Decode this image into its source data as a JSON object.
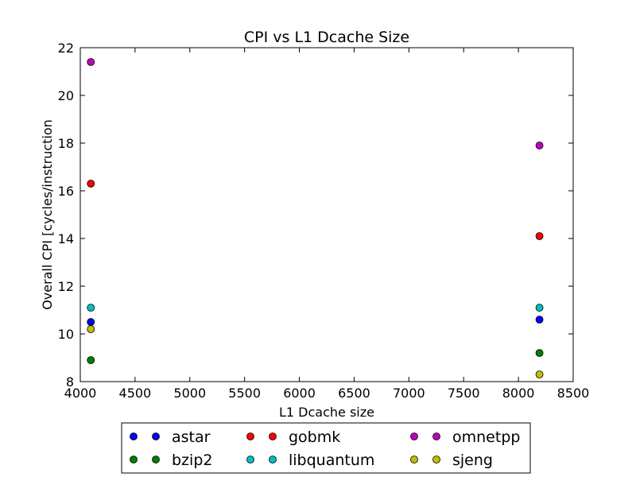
{
  "chart_data": {
    "type": "scatter",
    "title": "CPI vs L1 Dcache Size",
    "xlabel": "L1 Dcache size",
    "ylabel": "Overall CPI [cycles/instruction",
    "xlim": [
      4000,
      8500
    ],
    "ylim": [
      8,
      22
    ],
    "xticks": [
      4000,
      4500,
      5000,
      5500,
      6000,
      6500,
      7000,
      7500,
      8000,
      8500
    ],
    "yticks": [
      8,
      10,
      12,
      14,
      16,
      18,
      20,
      22
    ],
    "grid": false,
    "legend_position": "bottom-center",
    "legend_columns": 3,
    "series": [
      {
        "name": "astar",
        "color": "#0000ff",
        "x": [
          4096,
          8192
        ],
        "y": [
          10.5,
          10.6
        ]
      },
      {
        "name": "bzip2",
        "color": "#007f00",
        "x": [
          4096,
          8192
        ],
        "y": [
          8.9,
          9.2
        ]
      },
      {
        "name": "gobmk",
        "color": "#ff0000",
        "x": [
          4096,
          8192
        ],
        "y": [
          16.3,
          14.1
        ]
      },
      {
        "name": "libquantum",
        "color": "#00bfbf",
        "x": [
          4096,
          8192
        ],
        "y": [
          11.1,
          11.1
        ]
      },
      {
        "name": "omnetpp",
        "color": "#bf00bf",
        "x": [
          4096,
          8192
        ],
        "y": [
          21.4,
          17.9
        ]
      },
      {
        "name": "sjeng",
        "color": "#bfbf00",
        "x": [
          4096,
          8192
        ],
        "y": [
          10.2,
          8.3
        ]
      }
    ]
  }
}
